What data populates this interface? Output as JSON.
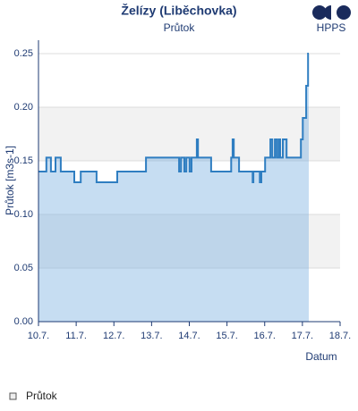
{
  "chart_data": {
    "type": "area",
    "title": "Želízy (Liběchovka)",
    "subtitle": "Průtok",
    "logo": "HPPS",
    "ylabel": "Průtok [m3s-1]",
    "xlabel": "Datum",
    "x": [
      10.0,
      10.21,
      10.21,
      10.33,
      10.33,
      10.45,
      10.45,
      10.59,
      10.59,
      10.95,
      10.95,
      11.12,
      11.12,
      11.54,
      11.54,
      12.09,
      12.09,
      12.85,
      12.85,
      13.73,
      13.73,
      13.78,
      13.78,
      13.87,
      13.87,
      13.92,
      13.92,
      14.01,
      14.01,
      14.06,
      14.06,
      14.2,
      14.2,
      14.23,
      14.23,
      14.58,
      14.58,
      15.11,
      15.11,
      15.15,
      15.15,
      15.18,
      15.18,
      15.32,
      15.32,
      15.68,
      15.68,
      15.7,
      15.7,
      15.87,
      15.87,
      15.91,
      15.91,
      16.01,
      16.01,
      16.15,
      16.15,
      16.2,
      16.2,
      16.27,
      16.27,
      16.32,
      16.32,
      16.37,
      16.37,
      16.41,
      16.41,
      16.48,
      16.48,
      16.58,
      16.58,
      16.96,
      16.96,
      17.01,
      17.01,
      17.1,
      17.1,
      17.15,
      17.15,
      17.17
    ],
    "series": [
      {
        "name": "Průtok",
        "color": "#2f7ec1",
        "fill": "rgba(120,174,225,0.42)",
        "values": [
          0.14,
          0.14,
          0.153,
          0.153,
          0.14,
          0.14,
          0.153,
          0.153,
          0.14,
          0.14,
          0.13,
          0.13,
          0.14,
          0.14,
          0.13,
          0.13,
          0.14,
          0.14,
          0.153,
          0.153,
          0.14,
          0.14,
          0.153,
          0.153,
          0.14,
          0.14,
          0.153,
          0.153,
          0.14,
          0.14,
          0.153,
          0.153,
          0.17,
          0.17,
          0.153,
          0.153,
          0.14,
          0.14,
          0.153,
          0.153,
          0.17,
          0.17,
          0.153,
          0.153,
          0.14,
          0.14,
          0.13,
          0.13,
          0.14,
          0.14,
          0.13,
          0.13,
          0.14,
          0.14,
          0.153,
          0.153,
          0.17,
          0.17,
          0.153,
          0.153,
          0.17,
          0.17,
          0.153,
          0.153,
          0.17,
          0.17,
          0.153,
          0.153,
          0.17,
          0.17,
          0.153,
          0.153,
          0.17,
          0.17,
          0.19,
          0.19,
          0.22,
          0.22,
          0.25,
          0.25
        ]
      }
    ],
    "xlim": [
      10,
      18
    ],
    "xticks": [
      {
        "value": 10,
        "label": "10.7."
      },
      {
        "value": 11,
        "label": "11.7."
      },
      {
        "value": 12,
        "label": "12.7."
      },
      {
        "value": 13,
        "label": "13.7."
      },
      {
        "value": 14,
        "label": "14.7."
      },
      {
        "value": 15,
        "label": "15.7."
      },
      {
        "value": 16,
        "label": "16.7."
      },
      {
        "value": 17,
        "label": "17.7."
      },
      {
        "value": 18,
        "label": "18.7."
      }
    ],
    "ylim": [
      0,
      0.2625
    ],
    "yticks": [
      {
        "value": 0,
        "label": "0.00"
      },
      0.05,
      {
        "value": 0.1,
        "label": "0.10"
      },
      0.15,
      {
        "value": 0.2,
        "label": "0.20"
      },
      0.25
    ],
    "grid": true,
    "alternate_bands": true,
    "legend": "bottom-left"
  }
}
